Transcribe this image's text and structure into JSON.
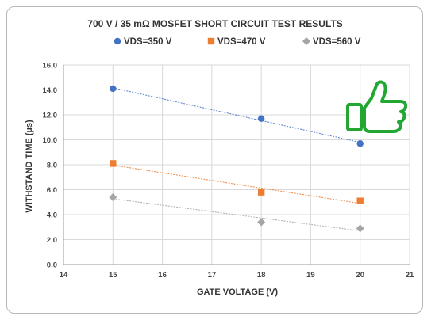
{
  "chart_data": {
    "type": "scatter",
    "title": "700 V / 35 mΩ MOSFET SHORT CIRCUIT TEST RESULTS",
    "xlabel": "GATE VOLTAGE (V)",
    "ylabel": "WITHSTAND TIME (µs)",
    "xlim": [
      14,
      21
    ],
    "ylim": [
      0,
      16
    ],
    "x_ticks": [
      "14",
      "15",
      "16",
      "17",
      "18",
      "19",
      "20",
      "21"
    ],
    "y_ticks": [
      "0.0",
      "2.0",
      "4.0",
      "6.0",
      "8.0",
      "10.0",
      "12.0",
      "14.0",
      "16.0"
    ],
    "grid": true,
    "legend_position": "top",
    "series": [
      {
        "name": "VDS=350 V",
        "color": "#4472c4",
        "marker": "circle",
        "x": [
          15,
          18,
          20
        ],
        "y": [
          14.1,
          11.7,
          9.7
        ]
      },
      {
        "name": "VDS=470 V",
        "color": "#ed7d31",
        "marker": "square",
        "x": [
          15,
          18,
          20
        ],
        "y": [
          8.1,
          5.8,
          5.1
        ]
      },
      {
        "name": "VDS=560 V",
        "color": "#a5a5a5",
        "marker": "diamond",
        "x": [
          15,
          18,
          20
        ],
        "y": [
          5.4,
          3.4,
          2.9
        ]
      }
    ],
    "trendlines": true,
    "annotation_icon": "thumbs-up-icon",
    "annotation_color": "#22a832"
  }
}
